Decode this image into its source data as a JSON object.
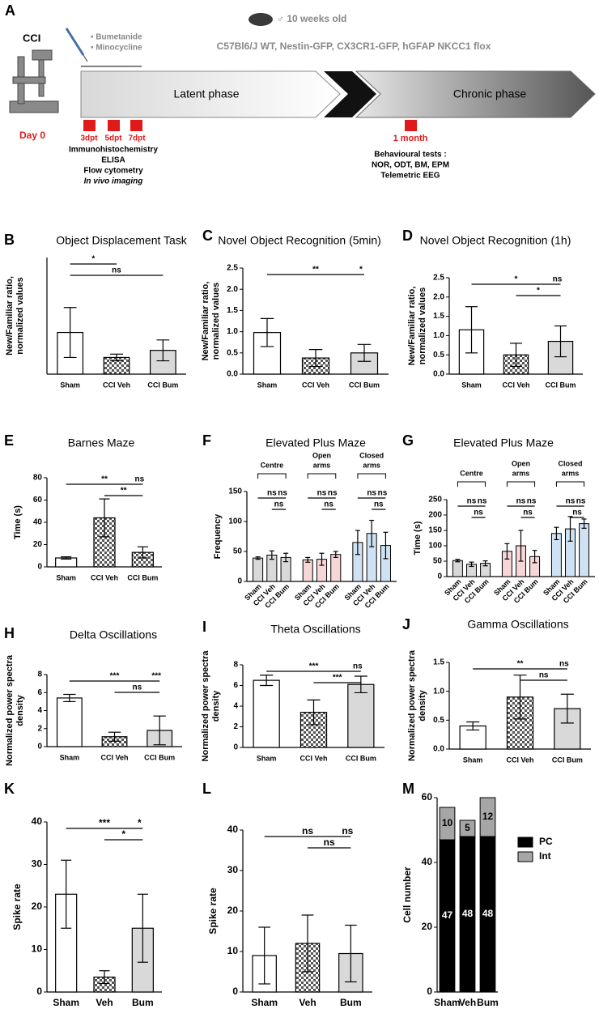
{
  "panel_a": {
    "label": "A",
    "model": "CCI",
    "day0": "Day 0",
    "drugs": [
      "▪ Bumetanide",
      "▪ Minocycline"
    ],
    "age": "♂ 10 weeks old",
    "strains": "C57Bl6/J WT, Nestin-GFP, CX3CR1-GFP, hGFAP NKCC1 flox",
    "latent": "Latent phase",
    "chronic": "Chronic phase",
    "timepoints": [
      "3dpt",
      "5dpt",
      "7dpt"
    ],
    "month": "1 month",
    "assays": [
      "Immunohistochemistry",
      "ELISA",
      "Flow cytometry",
      "In vivo imaging"
    ],
    "behaviour": [
      "Behavioural tests :",
      "NOR, ODT, BM, EPM",
      "Telemetric EEG"
    ]
  },
  "chart_data": [
    {
      "type": "bar",
      "label": "B",
      "title": "Object Displacement Task",
      "ylabel": [
        "New/Familiar ratio,",
        "normalized values"
      ],
      "categories": [
        "Sham",
        "CCI Veh",
        "CCI Bum"
      ],
      "values": [
        1.0,
        0.4,
        0.57
      ],
      "errors": [
        0.6,
        0.08,
        0.25
      ],
      "fills": [
        "#ffffff",
        "checker",
        "#d9d9d9"
      ],
      "ylim": [
        0,
        2.8
      ],
      "annotations": [
        {
          "groups": [
            0,
            1
          ],
          "labels": [
            "*"
          ]
        },
        {
          "groups": [
            0,
            2
          ],
          "labels": [
            "ns"
          ]
        }
      ]
    },
    {
      "type": "bar",
      "label": "C",
      "title": "Novel Object Recognition (5min)",
      "ylabel": [
        "New/Familiar ratio,",
        "normalized values"
      ],
      "categories": [
        "Sham",
        "CCI Veh",
        "CCI Bum"
      ],
      "values": [
        0.98,
        0.38,
        0.5
      ],
      "errors": [
        0.33,
        0.2,
        0.2
      ],
      "fills": [
        "#ffffff",
        "checker",
        "#d9d9d9"
      ],
      "ylim": [
        0,
        2.5
      ],
      "yticks": [
        {
          "value": 0,
          "label": "0.0"
        },
        {
          "value": 0.5,
          "label": "0.5"
        },
        {
          "value": 1,
          "label": "1.0"
        },
        {
          "value": 1.5,
          "label": "1.5"
        },
        {
          "value": 2,
          "label": "2.0"
        },
        {
          "value": 2.5,
          "label": "2.5"
        }
      ],
      "annotations": [
        {
          "groups": [
            0,
            2
          ],
          "labels": [
            "**",
            "*"
          ]
        }
      ]
    },
    {
      "type": "bar",
      "label": "D",
      "title": "Novel Object Recognition (1h)",
      "ylabel": [
        "New/Familiar ratio,",
        "normalized values"
      ],
      "categories": [
        "Sham",
        "CCI Veh",
        "CCI Bum"
      ],
      "values": [
        1.15,
        0.5,
        0.85
      ],
      "errors": [
        0.6,
        0.3,
        0.4
      ],
      "fills": [
        "#ffffff",
        "checker",
        "#d9d9d9"
      ],
      "ylim": [
        0,
        2.5
      ],
      "yticks": [
        {
          "value": 0,
          "label": "0.0"
        },
        {
          "value": 0.5,
          "label": "0.5"
        },
        {
          "value": 1,
          "label": "1.0"
        },
        {
          "value": 1.5,
          "label": "1.5"
        },
        {
          "value": 2,
          "label": "2.0"
        },
        {
          "value": 2.5,
          "label": "2.5"
        }
      ],
      "annotations": [
        {
          "groups": [
            0,
            2
          ],
          "labels": [
            "*",
            "ns"
          ]
        },
        {
          "groups": [
            1,
            2
          ],
          "labels": [
            "*"
          ]
        }
      ]
    },
    {
      "type": "bar",
      "label": "E",
      "title": "Barnes Maze",
      "ylabel": [
        "Time (s)"
      ],
      "categories": [
        "Sham",
        "CCI Veh",
        "CCI Bum"
      ],
      "values": [
        8,
        44,
        13
      ],
      "errors": [
        1,
        17,
        5
      ],
      "fills": [
        "#ffffff",
        "checker",
        "checker"
      ],
      "ylim": [
        0,
        80
      ],
      "yticks": [
        0,
        20,
        40,
        60,
        80
      ],
      "annotations": [
        {
          "groups": [
            0,
            2
          ],
          "labels": [
            "**",
            "ns"
          ]
        },
        {
          "groups": [
            1,
            2
          ],
          "labels": [
            "**"
          ]
        }
      ]
    },
    {
      "type": "grouped_bar",
      "label": "F",
      "title": "Elevated Plus Maze",
      "ylabel": [
        "Frequency"
      ],
      "categories": [
        "Sham",
        "CCI Veh",
        "CCI Bum"
      ],
      "ylim": [
        0,
        150
      ],
      "yticks": [
        0,
        50,
        100,
        150
      ],
      "groups": [
        {
          "label": [
            "Centre"
          ],
          "color": "#d9d9d9",
          "values": [
            39,
            44,
            40
          ],
          "errors": [
            2,
            7,
            7
          ],
          "annotations": [
            {
              "groups": [
                0,
                2
              ],
              "labels": [
                "ns",
                "ns"
              ]
            },
            {
              "groups": [
                1,
                2
              ],
              "labels": [
                "ns"
              ]
            }
          ]
        },
        {
          "label": [
            "Open",
            "arms"
          ],
          "color": "#f6d6d6",
          "values": [
            36,
            37,
            45
          ],
          "errors": [
            4,
            10,
            5
          ],
          "annotations": [
            {
              "groups": [
                0,
                2
              ],
              "labels": [
                "ns",
                "ns"
              ]
            },
            {
              "groups": [
                1,
                2
              ],
              "labels": [
                "ns"
              ]
            }
          ]
        },
        {
          "label": [
            "Closed",
            "arms"
          ],
          "color": "#cfe2f3",
          "values": [
            65,
            80,
            60
          ],
          "errors": [
            20,
            22,
            22
          ],
          "annotations": [
            {
              "groups": [
                0,
                2
              ],
              "labels": [
                "ns",
                "ns"
              ]
            },
            {
              "groups": [
                1,
                2
              ],
              "labels": [
                "ns"
              ]
            }
          ]
        }
      ]
    },
    {
      "type": "grouped_bar",
      "label": "G",
      "title": "Elevated Plus Maze",
      "ylabel": [
        "Time (s)"
      ],
      "categories": [
        "Sham",
        "CCI Veh",
        "CCI Bum"
      ],
      "ylim": [
        0,
        250
      ],
      "yticks": [
        0,
        50,
        100,
        150,
        200,
        250
      ],
      "groups": [
        {
          "label": [
            "Centre"
          ],
          "color": "#d9d9d9",
          "values": [
            52,
            40,
            43
          ],
          "errors": [
            4,
            7,
            8
          ],
          "annotations": [
            {
              "groups": [
                0,
                2
              ],
              "labels": [
                "ns",
                "ns"
              ]
            },
            {
              "groups": [
                1,
                2
              ],
              "labels": [
                "ns"
              ]
            }
          ]
        },
        {
          "label": [
            "Open",
            "arms"
          ],
          "color": "#f6d6d6",
          "values": [
            82,
            100,
            65
          ],
          "errors": [
            25,
            50,
            20
          ],
          "annotations": [
            {
              "groups": [
                0,
                2
              ],
              "labels": [
                "ns",
                "ns"
              ]
            },
            {
              "groups": [
                1,
                2
              ],
              "labels": [
                "ns"
              ]
            }
          ]
        },
        {
          "label": [
            "Closed",
            "arms"
          ],
          "color": "#cfe2f3",
          "values": [
            140,
            155,
            172
          ],
          "errors": [
            20,
            40,
            15
          ],
          "annotations": [
            {
              "groups": [
                0,
                2
              ],
              "labels": [
                "ns",
                "ns"
              ]
            },
            {
              "groups": [
                1,
                2
              ],
              "labels": [
                "ns"
              ]
            }
          ]
        }
      ]
    },
    {
      "type": "bar",
      "label": "H",
      "title": "Delta Oscillations",
      "ylabel": [
        "Normalized power spectra",
        "density"
      ],
      "categories": [
        "Sham",
        "CCI Veh",
        "CCI Bum"
      ],
      "values": [
        5.4,
        1.1,
        1.8
      ],
      "errors": [
        0.4,
        0.5,
        1.6
      ],
      "fills": [
        "#ffffff",
        "checker",
        "#d9d9d9"
      ],
      "ylim": [
        0,
        8
      ],
      "yticks": [
        0,
        2,
        4,
        6,
        8
      ],
      "annotations": [
        {
          "groups": [
            0,
            2
          ],
          "labels": [
            "***",
            "***"
          ]
        },
        {
          "groups": [
            1,
            2
          ],
          "labels": [
            "ns"
          ]
        }
      ]
    },
    {
      "type": "bar",
      "label": "I",
      "title": "Theta Oscillations",
      "ylabel": [
        "Normalized power spectra",
        "density"
      ],
      "categories": [
        "Sham",
        "CCI Veh",
        "CCI Bum"
      ],
      "values": [
        6.5,
        3.4,
        6.1
      ],
      "errors": [
        0.5,
        1.2,
        0.8
      ],
      "fills": [
        "#ffffff",
        "checker",
        "#d9d9d9"
      ],
      "ylim": [
        0,
        8
      ],
      "yticks": [
        0,
        2,
        4,
        6,
        8
      ],
      "annotations": [
        {
          "groups": [
            0,
            2
          ],
          "labels": [
            "***",
            "ns"
          ]
        },
        {
          "groups": [
            1,
            2
          ],
          "labels": [
            "***"
          ]
        }
      ]
    },
    {
      "type": "bar",
      "label": "J",
      "title": "Gamma Oscillations",
      "ylabel": [
        "Normalized power spectra",
        "density"
      ],
      "categories": [
        "Sham",
        "CCI Veh",
        "CCI Bum"
      ],
      "values": [
        0.4,
        0.9,
        0.7
      ],
      "errors": [
        0.07,
        0.38,
        0.25
      ],
      "fills": [
        "#ffffff",
        "checker",
        "#d9d9d9"
      ],
      "ylim": [
        0,
        1.5
      ],
      "yticks": [
        {
          "value": 0,
          "label": "0.0"
        },
        {
          "value": 0.5,
          "label": "0.5"
        },
        {
          "value": 1,
          "label": "1.0"
        },
        {
          "value": 1.5,
          "label": "1.5"
        }
      ],
      "annotations": [
        {
          "groups": [
            0,
            2
          ],
          "labels": [
            "**",
            "ns"
          ]
        },
        {
          "groups": [
            1,
            2
          ],
          "labels": [
            "ns"
          ]
        }
      ]
    },
    {
      "type": "bar",
      "label": "K",
      "ylabel": [
        "Spike rate"
      ],
      "categories": [
        "Sham",
        "Veh",
        "Bum"
      ],
      "values": [
        23,
        3.5,
        15
      ],
      "errors": [
        8,
        1.5,
        8
      ],
      "fills": [
        "#ffffff",
        "checker",
        "#d9d9d9"
      ],
      "ylim": [
        0,
        40
      ],
      "yticks": [
        0,
        10,
        20,
        30,
        40
      ],
      "annotations": [
        {
          "groups": [
            0,
            2
          ],
          "labels": [
            "***",
            "*"
          ]
        },
        {
          "groups": [
            1,
            2
          ],
          "labels": [
            "*"
          ]
        }
      ]
    },
    {
      "type": "bar",
      "label": "L",
      "ylabel": [
        "Spike rate"
      ],
      "categories": [
        "Sham",
        "Veh",
        "Bum"
      ],
      "values": [
        9,
        12,
        9.5
      ],
      "errors": [
        7,
        7,
        7
      ],
      "fills": [
        "#ffffff",
        "checker",
        "#d9d9d9"
      ],
      "ylim": [
        0,
        40
      ],
      "yticks": [
        0,
        10,
        20,
        30,
        40
      ],
      "annotations": [
        {
          "groups": [
            0,
            2
          ],
          "labels": [
            "ns",
            "ns"
          ]
        },
        {
          "groups": [
            1,
            2
          ],
          "labels": [
            "ns"
          ]
        }
      ]
    },
    {
      "type": "stacked_bar",
      "label": "M",
      "ylabel": [
        "Cell number"
      ],
      "categories": [
        "Sham",
        "Veh",
        "Bum"
      ],
      "ylim": [
        0,
        60
      ],
      "yticks": [
        0,
        20,
        40,
        60
      ],
      "legend": "right",
      "series": [
        {
          "name": "PC",
          "color": "#000000",
          "values": [
            47,
            48,
            48
          ]
        },
        {
          "name": "Int",
          "color": "#a6a6a6",
          "values": [
            10,
            5,
            12
          ]
        }
      ]
    }
  ]
}
